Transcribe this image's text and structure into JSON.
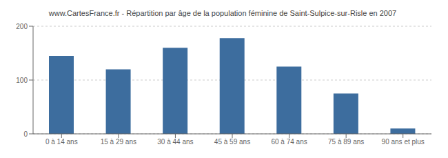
{
  "chart_data": {
    "type": "bar",
    "title": "www.CartesFrance.fr - Répartition par âge de la population féminine de Saint-Sulpice-sur-Risle en 2007",
    "categories": [
      "0 à 14 ans",
      "15 à 29 ans",
      "30 à 44 ans",
      "45 à 59 ans",
      "60 à 74 ans",
      "75 à 89 ans",
      "90 ans et plus"
    ],
    "values": [
      145,
      120,
      160,
      178,
      125,
      75,
      10
    ],
    "color": "#3d6d9e",
    "ylim": [
      0,
      200
    ],
    "yticks": [
      0,
      100,
      200
    ],
    "grid": true
  }
}
